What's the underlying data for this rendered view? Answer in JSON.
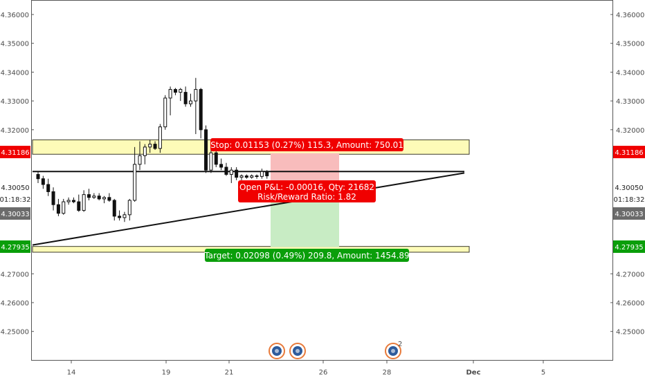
{
  "chart_data": {
    "type": "candlestick",
    "y_axis": {
      "min": 4.24,
      "max": 4.37,
      "ticks": [
        "4.36000",
        "4.35000",
        "4.34000",
        "4.33000",
        "4.32000",
        "4.31000",
        "4.30000",
        "4.29000",
        "4.28000",
        "4.27000",
        "4.26000",
        "4.25000"
      ],
      "tick_values": [
        4.36,
        4.35,
        4.34,
        4.33,
        4.32,
        4.31,
        4.3,
        4.29,
        4.28,
        4.27,
        4.26,
        4.25
      ]
    },
    "x_axis": {
      "labels": [
        "14",
        "19",
        "21",
        "26",
        "28",
        "Dec",
        "5"
      ]
    },
    "price_tags": {
      "stop": {
        "text": "4.31186",
        "value": 4.31186,
        "color": "#f00000"
      },
      "current": {
        "text": "4.30050",
        "value": 4.3005
      },
      "countdown": {
        "text": "01:18:32"
      },
      "entry": {
        "text": "4.30033",
        "value": 4.30033,
        "color": "#6b6b6b"
      },
      "target": {
        "text": "4.27935",
        "value": 4.27935,
        "color": "#0a9e0a"
      }
    },
    "zones": [
      {
        "name": "upper-zone",
        "top": 4.3165,
        "bottom": 4.3115
      },
      {
        "name": "lower-zone",
        "top": 4.2795,
        "bottom": 4.2775
      }
    ],
    "position": {
      "entry": 4.30033,
      "stop": 4.31186,
      "target": 4.27935,
      "stop_label": "Stop: 0.01153 (0.27%) 115.3, Amount: 750.01",
      "pnl_label": "Open P&L: -0.00016, Qty: 21682",
      "ratio_label": "Risk/Reward Ratio: 1.82",
      "target_label": "Target: 0.02098 (0.49%) 209.8, Amount: 1454.89"
    },
    "trendlines": [
      {
        "name": "horizontal-resistance",
        "from": [
          0,
          4.3055
        ],
        "to": [
          1,
          4.3055
        ]
      },
      {
        "name": "rising-support",
        "from": [
          0,
          4.28
        ],
        "to": [
          1,
          4.305
        ]
      }
    ],
    "candles": [
      {
        "o": 4.3045,
        "h": 4.3055,
        "l": 4.3015,
        "c": 4.303
      },
      {
        "o": 4.303,
        "h": 4.304,
        "l": 4.2995,
        "c": 4.301
      },
      {
        "o": 4.301,
        "h": 4.303,
        "l": 4.297,
        "c": 4.2985
      },
      {
        "o": 4.2985,
        "h": 4.3,
        "l": 4.292,
        "c": 4.294
      },
      {
        "o": 4.294,
        "h": 4.296,
        "l": 4.29,
        "c": 4.291
      },
      {
        "o": 4.291,
        "h": 4.296,
        "l": 4.2905,
        "c": 4.295
      },
      {
        "o": 4.295,
        "h": 4.2965,
        "l": 4.294,
        "c": 4.2955
      },
      {
        "o": 4.2955,
        "h": 4.2965,
        "l": 4.2945,
        "c": 4.295
      },
      {
        "o": 4.295,
        "h": 4.2975,
        "l": 4.2915,
        "c": 4.292
      },
      {
        "o": 4.292,
        "h": 4.299,
        "l": 4.2915,
        "c": 4.2975
      },
      {
        "o": 4.2975,
        "h": 4.2995,
        "l": 4.2955,
        "c": 4.2965
      },
      {
        "o": 4.2965,
        "h": 4.298,
        "l": 4.296,
        "c": 4.297
      },
      {
        "o": 4.297,
        "h": 4.298,
        "l": 4.2955,
        "c": 4.296
      },
      {
        "o": 4.296,
        "h": 4.297,
        "l": 4.2945,
        "c": 4.2965
      },
      {
        "o": 4.2965,
        "h": 4.298,
        "l": 4.295,
        "c": 4.2955
      },
      {
        "o": 4.2955,
        "h": 4.296,
        "l": 4.2885,
        "c": 4.29
      },
      {
        "o": 4.29,
        "h": 4.292,
        "l": 4.2885,
        "c": 4.2895
      },
      {
        "o": 4.2895,
        "h": 4.2915,
        "l": 4.288,
        "c": 4.2905
      },
      {
        "o": 4.2905,
        "h": 4.296,
        "l": 4.2885,
        "c": 4.2955
      },
      {
        "o": 4.2955,
        "h": 4.314,
        "l": 4.295,
        "c": 4.308
      },
      {
        "o": 4.308,
        "h": 4.316,
        "l": 4.306,
        "c": 4.311
      },
      {
        "o": 4.311,
        "h": 4.315,
        "l": 4.308,
        "c": 4.314
      },
      {
        "o": 4.314,
        "h": 4.3165,
        "l": 4.312,
        "c": 4.315
      },
      {
        "o": 4.315,
        "h": 4.316,
        "l": 4.313,
        "c": 4.3135
      },
      {
        "o": 4.3135,
        "h": 4.322,
        "l": 4.312,
        "c": 4.321
      },
      {
        "o": 4.321,
        "h": 4.332,
        "l": 4.32,
        "c": 4.331
      },
      {
        "o": 4.331,
        "h": 4.335,
        "l": 4.325,
        "c": 4.334
      },
      {
        "o": 4.334,
        "h": 4.3345,
        "l": 4.332,
        "c": 4.333
      },
      {
        "o": 4.333,
        "h": 4.3345,
        "l": 4.33,
        "c": 4.334
      },
      {
        "o": 4.333,
        "h": 4.335,
        "l": 4.328,
        "c": 4.329
      },
      {
        "o": 4.329,
        "h": 4.3325,
        "l": 4.328,
        "c": 4.33
      },
      {
        "o": 4.33,
        "h": 4.338,
        "l": 4.3185,
        "c": 4.334
      },
      {
        "o": 4.334,
        "h": 4.3345,
        "l": 4.317,
        "c": 4.32
      },
      {
        "o": 4.32,
        "h": 4.3215,
        "l": 4.305,
        "c": 4.306
      },
      {
        "o": 4.306,
        "h": 4.313,
        "l": 4.305,
        "c": 4.312
      },
      {
        "o": 4.312,
        "h": 4.3135,
        "l": 4.307,
        "c": 4.308
      },
      {
        "o": 4.308,
        "h": 4.31,
        "l": 4.306,
        "c": 4.307
      },
      {
        "o": 4.307,
        "h": 4.3085,
        "l": 4.304,
        "c": 4.3045
      },
      {
        "o": 4.3045,
        "h": 4.307,
        "l": 4.3015,
        "c": 4.306
      },
      {
        "o": 4.306,
        "h": 4.307,
        "l": 4.3025,
        "c": 4.3035
      },
      {
        "o": 4.3035,
        "h": 4.3045,
        "l": 4.3025,
        "c": 4.304
      },
      {
        "o": 4.304,
        "h": 4.3045,
        "l": 4.303,
        "c": 4.3035
      },
      {
        "o": 4.3035,
        "h": 4.3045,
        "l": 4.303,
        "c": 4.304
      },
      {
        "o": 4.304,
        "h": 4.3045,
        "l": 4.303,
        "c": 4.3038
      },
      {
        "o": 4.3038,
        "h": 4.3065,
        "l": 4.303,
        "c": 4.3055
      },
      {
        "o": 4.3055,
        "h": 4.306,
        "l": 4.303,
        "c": 4.304
      }
    ],
    "event_markers": [
      {
        "name": "event-marker-1",
        "icon": "flag-icon"
      },
      {
        "name": "event-marker-2",
        "icon": "flag-icon"
      },
      {
        "name": "event-marker-3",
        "icon": "flag-icon",
        "count": "2"
      }
    ],
    "colors": {
      "zone_fill": "#fdfbb8",
      "zone_stroke": "#3a3a2a",
      "stop_red": "#f00000",
      "target_green": "#0a9e0a",
      "risk_fill": "#f8bcbc",
      "reward_fill": "#c8ecc4",
      "candle": "#111111"
    }
  }
}
